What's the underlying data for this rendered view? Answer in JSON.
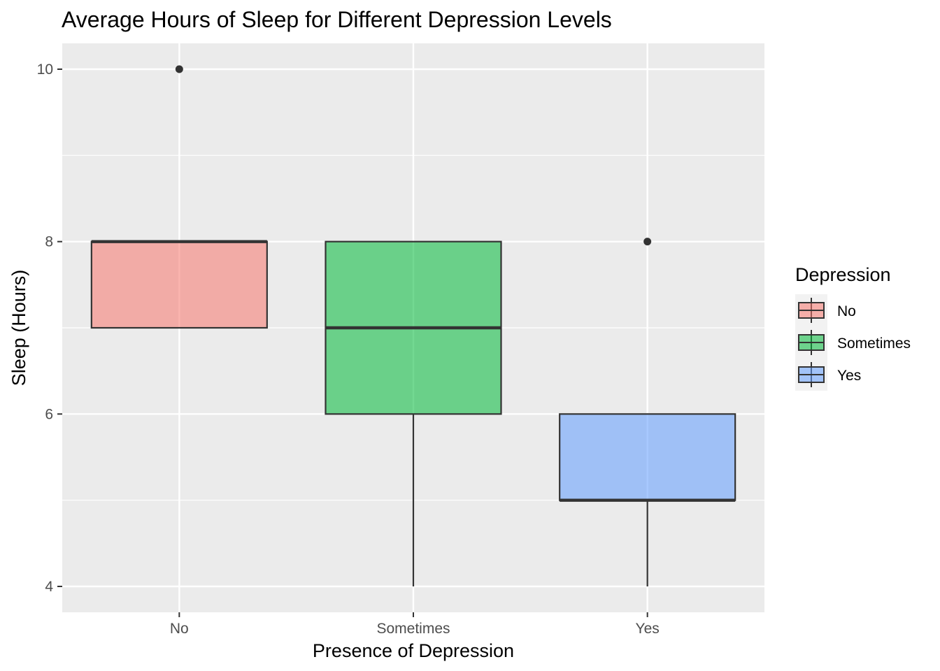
{
  "chart_data": {
    "type": "boxplot",
    "title": "Average Hours of Sleep for Different Depression Levels",
    "xlabel": "Presence of Depression",
    "ylabel": "Sleep (Hours)",
    "categories": [
      "No",
      "Sometimes",
      "Yes"
    ],
    "ylim": [
      3.7,
      10.3
    ],
    "yticks": [
      4,
      6,
      8,
      10
    ],
    "grid": true,
    "legend": {
      "title": "Depression",
      "position": "right",
      "entries": [
        "No",
        "Sometimes",
        "Yes"
      ]
    },
    "series": [
      {
        "name": "No",
        "color": "#F8766D",
        "min": 7,
        "q1": 7,
        "median": 8,
        "q3": 8,
        "max": 8,
        "outliers": [
          10
        ]
      },
      {
        "name": "Sometimes",
        "color": "#00BA38",
        "min": 4,
        "q1": 6,
        "median": 7,
        "q3": 8,
        "max": 8,
        "outliers": []
      },
      {
        "name": "Yes",
        "color": "#619CFF",
        "min": 4,
        "q1": 5,
        "median": 5,
        "q3": 6,
        "max": 6,
        "outliers": [
          8
        ]
      }
    ]
  }
}
